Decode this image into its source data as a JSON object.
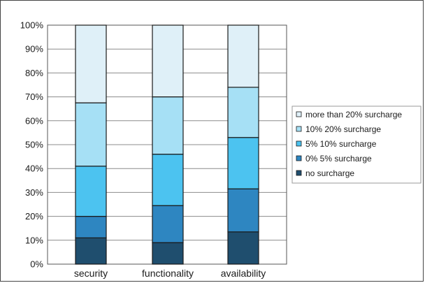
{
  "chart_data": {
    "type": "bar",
    "stacked": true,
    "percent": true,
    "categories": [
      "security",
      "functionality",
      "availability"
    ],
    "ylim": [
      0,
      100
    ],
    "yticks": [
      "0%",
      "10%",
      "20%",
      "30%",
      "40%",
      "50%",
      "60%",
      "70%",
      "80%",
      "90%",
      "100%"
    ],
    "grid": true,
    "legend_position": "right",
    "series": [
      {
        "name": "no surcharge",
        "color": "#1f4e6e",
        "values": [
          11,
          9,
          13.5
        ]
      },
      {
        "name": "0% 5% surcharge",
        "color": "#2e86c1",
        "values": [
          9,
          15.5,
          18
        ]
      },
      {
        "name": "5% 10% surcharge",
        "color": "#4cc3f0",
        "values": [
          21,
          21.5,
          21.5
        ]
      },
      {
        "name": "10% 20% surcharge",
        "color": "#a6e0f5",
        "values": [
          26.5,
          24,
          21
        ]
      },
      {
        "name": "more than 20% surcharge",
        "color": "#dff0f8",
        "values": [
          32.5,
          30,
          26
        ]
      }
    ]
  }
}
